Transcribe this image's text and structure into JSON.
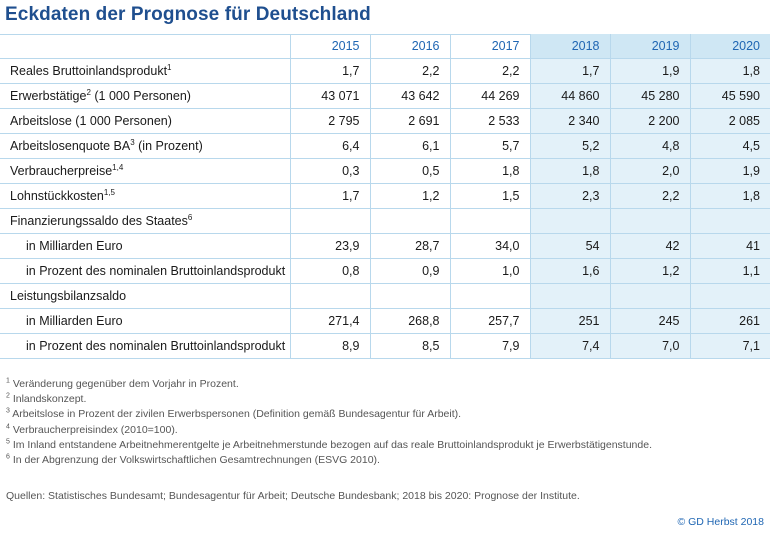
{
  "title": "Eckdaten der Prognose für Deutschland",
  "years": [
    "2015",
    "2016",
    "2017",
    "2018",
    "2019",
    "2020"
  ],
  "rows": [
    {
      "label": "Reales Bruttoinlandsprodukt",
      "sup": "1",
      "values": [
        "1,7",
        "2,2",
        "2,2",
        "1,7",
        "1,9",
        "1,8"
      ]
    },
    {
      "label": "Erwerbstätige",
      "sup": "2",
      "suffix": " (1 000 Personen)",
      "values": [
        "43 071",
        "43 642",
        "44 269",
        "44 860",
        "45 280",
        "45 590"
      ]
    },
    {
      "label": "Arbeitslose (1 000 Personen)",
      "values": [
        "2 795",
        "2 691",
        "2 533",
        "2 340",
        "2 200",
        "2 085"
      ]
    },
    {
      "label": "Arbeitslosenquote BA",
      "sup": "3",
      "suffix": " (in Prozent)",
      "values": [
        "6,4",
        "6,1",
        "5,7",
        "5,2",
        "4,8",
        "4,5"
      ]
    },
    {
      "label": "Verbraucherpreise",
      "sup": "1,4",
      "values": [
        "0,3",
        "0,5",
        "1,8",
        "1,8",
        "2,0",
        "1,9"
      ]
    },
    {
      "label": "Lohnstückkosten",
      "sup": "1,5",
      "values": [
        "1,7",
        "1,2",
        "1,5",
        "2,3",
        "2,2",
        "1,8"
      ]
    },
    {
      "label": "Finanzierungssaldo des Staates",
      "sup": "6",
      "values": [
        "",
        "",
        "",
        "",
        "",
        ""
      ]
    },
    {
      "label": "in Milliarden Euro",
      "indent": true,
      "values": [
        "23,9",
        "28,7",
        "34,0",
        "54",
        "42",
        "41"
      ]
    },
    {
      "label": "in Prozent des nominalen Bruttoinlandsprodukt",
      "indent": true,
      "values": [
        "0,8",
        "0,9",
        "1,0",
        "1,6",
        "1,2",
        "1,1"
      ]
    },
    {
      "label": "Leistungsbilanzsaldo",
      "values": [
        "",
        "",
        "",
        "",
        "",
        ""
      ]
    },
    {
      "label": "in Milliarden Euro",
      "indent": true,
      "values": [
        "271,4",
        "268,8",
        "257,7",
        "251",
        "245",
        "261"
      ]
    },
    {
      "label": "in Prozent des nominalen Bruttoinlandsprodukt",
      "indent": true,
      "values": [
        "8,9",
        "8,5",
        "7,9",
        "7,4",
        "7,0",
        "7,1"
      ]
    }
  ],
  "footnotes": [
    {
      "num": "1",
      "text": "Veränderung gegenüber dem Vorjahr in Prozent."
    },
    {
      "num": "2",
      "text": "Inlandskonzept."
    },
    {
      "num": "3",
      "text": "Arbeitslose in Prozent der zivilen Erwerbspersonen (Definition gemäß Bundesagentur für Arbeit)."
    },
    {
      "num": "4",
      "text": "Verbraucherpreisindex (2010=100)."
    },
    {
      "num": "5",
      "text": "Im Inland entstandene Arbeitnehmerentgelte je Arbeitnehmerstunde bezogen auf das reale Bruttoinlandsprodukt je Erwerbstätigenstunde."
    },
    {
      "num": "6",
      "text": "In der Abgrenzung der Volkswirtschaftlichen Gesamtrechnungen (ESVG 2010)."
    }
  ],
  "source": "Quellen: Statistisches Bundesamt; Bundesagentur für Arbeit; Deutsche Bundesbank; 2018 bis 2020: Prognose der Institute.",
  "copyright": "© GD Herbst 2018"
}
